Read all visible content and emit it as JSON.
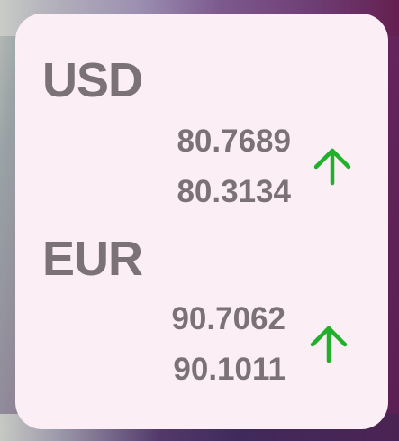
{
  "widget": {
    "currencies": [
      {
        "code": "USD",
        "rate_sell": "80.7689",
        "rate_buy": "80.3134",
        "trend": "up",
        "trend_icon": "arrow-up-icon"
      },
      {
        "code": "EUR",
        "rate_sell": "90.7062",
        "rate_buy": "90.1011",
        "trend": "up",
        "trend_icon": "arrow-up-icon"
      }
    ]
  },
  "colors": {
    "card_bg": "#fbeef4",
    "text": "#7b7277",
    "trend_up": "#21b02a"
  }
}
